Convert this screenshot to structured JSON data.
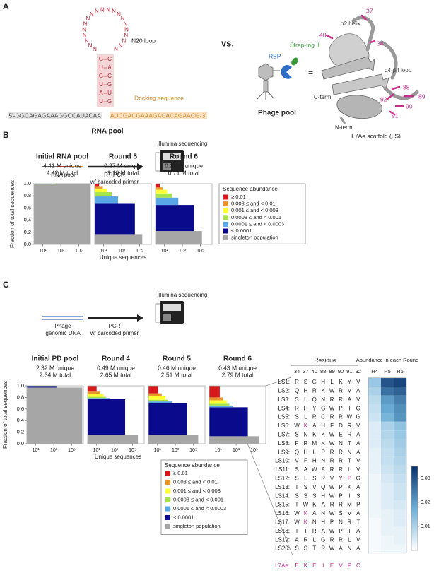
{
  "panels": {
    "a": "A",
    "b": "B",
    "c": "C"
  },
  "rna_pool_diagram": {
    "loop": [
      "N",
      "N",
      "N",
      "N",
      "N",
      "N",
      "N",
      "N",
      "N",
      "N",
      "N",
      "N",
      "N",
      "N",
      "N",
      "N",
      "N",
      "N",
      "N",
      "N"
    ],
    "loop_label": "N20 loop",
    "stem_left": [
      "G",
      "U",
      "G",
      "U",
      "A",
      "U"
    ],
    "stem_right": [
      "C",
      "A",
      "C",
      "G",
      "U",
      "G"
    ],
    "five_prime": "5'-GGCAGAGAAAGGCCAUACAA",
    "docking_sequence": "AUCGACGAAAGACACAGAACG-3'",
    "docking_label": "Docking sequence",
    "caption": "RNA pool"
  },
  "versus": "vs.",
  "phage_diagram": {
    "tag": "Strep-tag II",
    "rbp": "RBP",
    "equals": "=",
    "caption": "Phage pool"
  },
  "structure": {
    "helix": "α2 helix",
    "loop": "α4-β4 loop",
    "residues": [
      "40",
      "37",
      "34",
      "88",
      "89",
      "92",
      "90",
      "91"
    ],
    "c_term": "C-term",
    "n_term": "N-term",
    "caption": "L7Ae scaffold (LS)"
  },
  "workflow_b": {
    "input": "RNA pool",
    "step": [
      "RT-PCR",
      "w/ barcoded primer"
    ],
    "output": "Illumina sequencing"
  },
  "workflow_c": {
    "input": [
      "Phage",
      "genomic DNA"
    ],
    "step": [
      "PCR",
      "w/ barcoded primer"
    ],
    "output": "Illumina sequencing"
  },
  "residue_table": {
    "title": "Residue",
    "positions": [
      "34",
      "37",
      "40",
      "88",
      "89",
      "90",
      "91",
      "92"
    ],
    "rows": [
      {
        "label": "LS1:",
        "residues": [
          "R",
          "S",
          "G",
          "H",
          "L",
          "K",
          "Y",
          "V"
        ]
      },
      {
        "label": "LS2:",
        "residues": [
          "Q",
          "H",
          "R",
          "K",
          "W",
          "R",
          "V",
          "A"
        ]
      },
      {
        "label": "LS3:",
        "residues": [
          "S",
          "L",
          "Q",
          "N",
          "R",
          "R",
          "A",
          "V"
        ]
      },
      {
        "label": "LS4:",
        "residues": [
          "R",
          "H",
          "Y",
          "G",
          "W",
          "P",
          "I",
          "G"
        ]
      },
      {
        "label": "LS5:",
        "residues": [
          "S",
          "L",
          "R",
          "C",
          "R",
          "R",
          "W",
          "G"
        ]
      },
      {
        "label": "LS6:",
        "residues": [
          "W",
          "K",
          "A",
          "H",
          "F",
          "D",
          "R",
          "V"
        ]
      },
      {
        "label": "LS7:",
        "residues": [
          "S",
          "N",
          "K",
          "K",
          "W",
          "E",
          "R",
          "A"
        ]
      },
      {
        "label": "LS8:",
        "residues": [
          "F",
          "R",
          "M",
          "K",
          "W",
          "N",
          "T",
          "A"
        ]
      },
      {
        "label": "LS9:",
        "residues": [
          "Q",
          "H",
          "L",
          "P",
          "R",
          "R",
          "N",
          "A"
        ]
      },
      {
        "label": "LS10:",
        "residues": [
          "V",
          "F",
          "H",
          "N",
          "R",
          "R",
          "T",
          "V"
        ]
      },
      {
        "label": "LS11:",
        "residues": [
          "S",
          "A",
          "W",
          "A",
          "R",
          "R",
          "L",
          "V"
        ]
      },
      {
        "label": "LS12:",
        "residues": [
          "S",
          "L",
          "S",
          "R",
          "V",
          "Y",
          "P",
          "G"
        ]
      },
      {
        "label": "LS13:",
        "residues": [
          "T",
          "S",
          "V",
          "Q",
          "W",
          "P",
          "K",
          "A"
        ]
      },
      {
        "label": "LS14:",
        "residues": [
          "S",
          "S",
          "S",
          "H",
          "W",
          "P",
          "I",
          "S"
        ]
      },
      {
        "label": "LS15:",
        "residues": [
          "T",
          "W",
          "K",
          "A",
          "R",
          "R",
          "M",
          "P"
        ]
      },
      {
        "label": "LS16:",
        "residues": [
          "W",
          "K",
          "A",
          "N",
          "W",
          "S",
          "V",
          "A"
        ]
      },
      {
        "label": "LS17:",
        "residues": [
          "W",
          "K",
          "N",
          "H",
          "P",
          "N",
          "R",
          "T"
        ]
      },
      {
        "label": "LS18:",
        "residues": [
          "I",
          "I",
          "R",
          "A",
          "W",
          "P",
          "I",
          "A"
        ]
      },
      {
        "label": "LS19:",
        "residues": [
          "A",
          "R",
          "L",
          "G",
          "R",
          "R",
          "L",
          "V"
        ]
      },
      {
        "label": "LS20:",
        "residues": [
          "S",
          "S",
          "T",
          "R",
          "W",
          "A",
          "N",
          "A"
        ]
      }
    ],
    "reference": {
      "label": "L7Ae:",
      "residues": [
        "E",
        "K",
        "E",
        "I",
        "E",
        "V",
        "P",
        "C"
      ]
    }
  },
  "chart_data": [
    {
      "type": "block",
      "categories": [
        "Initial RNA pool",
        "Round 5",
        "Round 6"
      ],
      "subtitles": [
        [
          "4.41 M unique",
          "4.42 M total"
        ],
        [
          "0.27 M unique",
          "1.10 M total"
        ],
        [
          "0.20 M unique",
          "0.71 M total"
        ]
      ],
      "xlabel": "Unique sequences",
      "ylabel": "Fraction of total sequences",
      "xscale": "log",
      "xlim": [
        1,
        2000000
      ],
      "xticks": [
        {
          "value": 10,
          "label": "10¹"
        },
        {
          "value": 1000,
          "label": "10³"
        },
        {
          "value": 100000,
          "label": "10⁵"
        }
      ],
      "ylim": [
        0,
        1
      ],
      "yticks": [
        {
          "value": 0,
          "label": "0.0"
        },
        0.2,
        0.4,
        0.6,
        0.8,
        {
          "value": 1,
          "label": "1.0"
        }
      ],
      "legend_title": "Sequence abundance",
      "legend": "right",
      "series": [
        {
          "name": "≥ 0.01",
          "color": "#d7191c",
          "values": [
            null,
            0.04,
            0.06
          ],
          "unique": [
            null,
            3,
            3
          ]
        },
        {
          "name": "0.003 ≤ and < 0.01",
          "color": "#e8952c",
          "values": [
            null,
            0.04,
            0.04
          ],
          "unique": [
            null,
            8,
            6
          ]
        },
        {
          "name": "0.001 ≤ and < 0.003",
          "color": "#ffff33",
          "values": [
            null,
            0.06,
            0.06
          ],
          "unique": [
            null,
            25,
            20
          ]
        },
        {
          "name": "0.0003 ≤ and < 0.001",
          "color": "#a6e34a",
          "values": [
            null,
            0.07,
            0.07
          ],
          "unique": [
            null,
            80,
            70
          ]
        },
        {
          "name": "0.0001 ≤ and < 0.0003",
          "color": "#5aa7e8",
          "values": [
            null,
            0.11,
            0.12
          ],
          "unique": [
            null,
            400,
            350
          ]
        },
        {
          "name": "< 0.0001",
          "color": "#0a0a8c",
          "values": [
            0.01,
            0.51,
            0.43
          ],
          "unique": [
            200,
            30000,
            20000
          ]
        },
        {
          "name": "singleton population",
          "color": "#a6a6a6",
          "values": [
            0.99,
            0.17,
            0.22
          ],
          "unique": [
            1800000,
            200000,
            150000
          ]
        }
      ]
    },
    {
      "type": "block",
      "categories": [
        "Initial PD pool",
        "Round 4",
        "Round 5",
        "Round 6"
      ],
      "subtitles": [
        [
          "2.32 M unique",
          "2.34 M total"
        ],
        [
          "0.49 M unique",
          "2.65 M total"
        ],
        [
          "0.46 M unique",
          "2.51 M total"
        ],
        [
          "0.43 M unique",
          "2.79 M total"
        ]
      ],
      "xlabel": "Unique sequences",
      "ylabel": "Fraction of total sequences",
      "xscale": "log",
      "xlim": [
        1,
        2000000
      ],
      "xticks": [
        {
          "value": 10,
          "label": "10¹"
        },
        {
          "value": 1000,
          "label": "10³"
        },
        {
          "value": 100000,
          "label": "10⁵"
        }
      ],
      "ylim": [
        0,
        1
      ],
      "yticks": [
        {
          "value": 0,
          "label": "0.0"
        },
        0.2,
        0.4,
        0.6,
        0.8,
        {
          "value": 1,
          "label": "1.0"
        }
      ],
      "legend_title": "Sequence abundance",
      "legend": "bottom",
      "series": [
        {
          "name": "≥ 0.01",
          "color": "#d7191c",
          "values": [
            null,
            0.1,
            0.13,
            0.2
          ],
          "unique": [
            null,
            10,
            12,
            15
          ]
        },
        {
          "name": "0.003 ≤ and < 0.01",
          "color": "#e8952c",
          "values": [
            null,
            0.04,
            0.05,
            0.05
          ],
          "unique": [
            null,
            25,
            30,
            35
          ]
        },
        {
          "name": "0.001 ≤ and < 0.003",
          "color": "#ffff33",
          "values": [
            null,
            0.05,
            0.06,
            0.06
          ],
          "unique": [
            null,
            60,
            80,
            90
          ]
        },
        {
          "name": "0.0003 ≤ and < 0.001",
          "color": "#a6e34a",
          "values": [
            null,
            0.02,
            0.03,
            0.03
          ],
          "unique": [
            null,
            120,
            160,
            180
          ]
        },
        {
          "name": "0.0001 ≤ and < 0.0003",
          "color": "#5aa7e8",
          "values": [
            null,
            0.02,
            0.03,
            0.03
          ],
          "unique": [
            null,
            300,
            400,
            450
          ]
        },
        {
          "name": "< 0.0001",
          "color": "#0a0a8c",
          "values": [
            0.03,
            0.62,
            0.55,
            0.5
          ],
          "unique": [
            2000,
            15000,
            20000,
            20000
          ]
        },
        {
          "name": "singleton population",
          "color": "#a6a6a6",
          "values": [
            0.97,
            0.15,
            0.15,
            0.13
          ],
          "unique": [
            1500000,
            400000,
            350000,
            350000
          ]
        }
      ]
    },
    {
      "type": "heatmap",
      "title": "Abundance in each Round",
      "columns": [
        "R4",
        "R5",
        "R6"
      ],
      "values": [
        [
          0.012,
          0.03,
          0.032
        ],
        [
          0.01,
          0.026,
          0.028
        ],
        [
          0.008,
          0.02,
          0.024
        ],
        [
          0.007,
          0.018,
          0.022
        ],
        [
          0.006,
          0.016,
          0.021
        ],
        [
          0.004,
          0.01,
          0.013
        ],
        [
          0.004,
          0.009,
          0.012
        ],
        [
          0.004,
          0.008,
          0.011
        ],
        [
          0.003,
          0.007,
          0.01
        ],
        [
          0.003,
          0.007,
          0.009
        ],
        [
          0.003,
          0.006,
          0.008
        ],
        [
          0.002,
          0.005,
          0.007
        ],
        [
          0.002,
          0.004,
          0.006
        ],
        [
          0.002,
          0.004,
          0.006
        ],
        [
          0.002,
          0.004,
          0.005
        ],
        [
          0.002,
          0.003,
          0.004
        ],
        [
          0.001,
          0.003,
          0.004
        ],
        [
          0.001,
          0.003,
          0.003
        ],
        [
          0.001,
          0.002,
          0.003
        ],
        [
          0.001,
          0.002,
          0.002
        ]
      ],
      "zlim": [
        0,
        0.035
      ],
      "zticks": [
        0.01,
        0.02,
        0.03
      ],
      "colors": [
        "#ffffff",
        "#6baed6",
        "#08306b"
      ]
    }
  ]
}
